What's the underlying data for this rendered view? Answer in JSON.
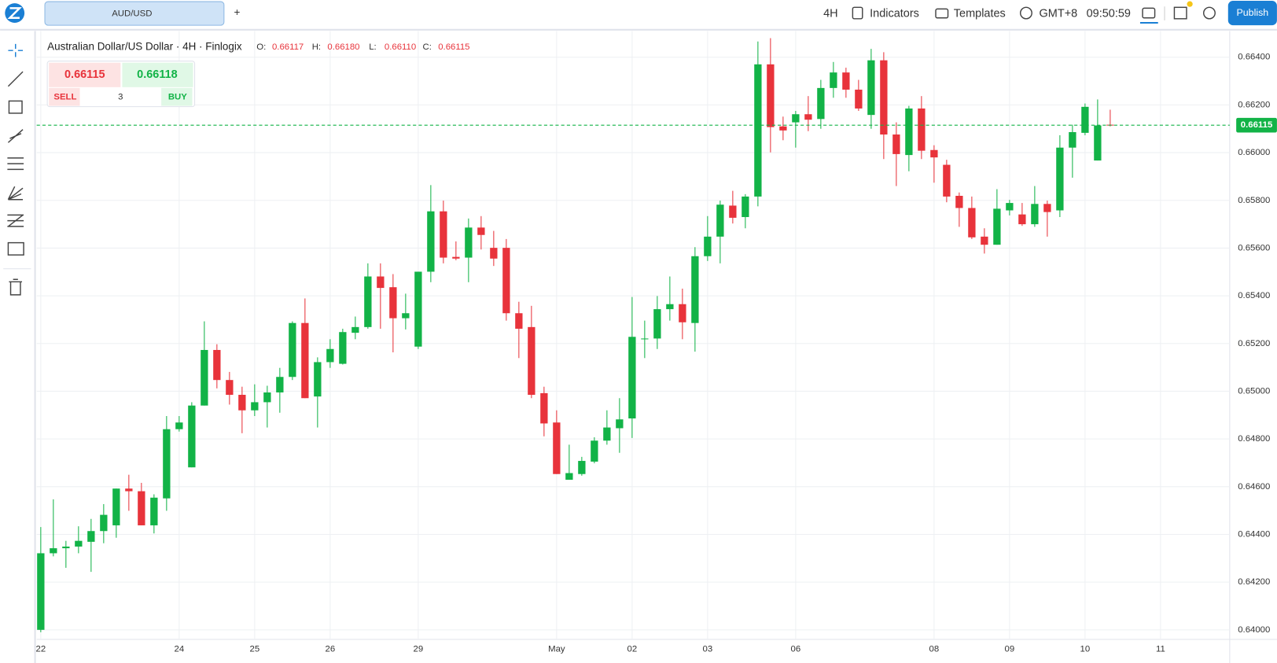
{
  "toolbar": {
    "symbol": "AUD/USD",
    "add_tab": "+",
    "interval": "4H",
    "indicators": "Indicators",
    "templates": "Templates",
    "timezone": "GMT+8",
    "clock": "09:50:59",
    "publish": "Publish"
  },
  "legend": {
    "title": "Australian Dollar/US Dollar · 4H · Finlogix",
    "o_label": "O:",
    "o": "0.66117",
    "h_label": "H:",
    "h": "0.66180",
    "l_label": "L:",
    "l": "0.66110",
    "c_label": "C:",
    "c": "0.66115"
  },
  "trade": {
    "sell_price": "0.66115",
    "buy_price": "0.66118",
    "sell": "SELL",
    "quantity": "3",
    "buy": "BUY"
  },
  "chart_data": {
    "type": "candlestick",
    "categories": [
      "22",
      null,
      null,
      null,
      null,
      null,
      null,
      null,
      null,
      null,
      null,
      "24",
      null,
      null,
      null,
      null,
      null,
      "25",
      null,
      null,
      null,
      null,
      null,
      "26",
      null,
      null,
      null,
      null,
      null,
      null,
      "29",
      null,
      null,
      null,
      null,
      null,
      null,
      null,
      null,
      null,
      null,
      "May",
      null,
      null,
      null,
      null,
      null,
      "02",
      null,
      null,
      null,
      null,
      null,
      "03",
      null,
      null,
      null,
      null,
      null,
      null,
      "06",
      null,
      null,
      null,
      null,
      null,
      null,
      null,
      null,
      null,
      null,
      "08",
      null,
      null,
      null,
      null,
      null,
      "09",
      null,
      null,
      null,
      null,
      null,
      "10",
      null,
      null,
      null,
      null,
      null,
      "11",
      null,
      null,
      null,
      null,
      null
    ],
    "open": [
      0.64,
      0.64321,
      0.64342,
      0.64349,
      0.64369,
      0.64414,
      0.64438,
      0.64592,
      0.64581,
      0.64438,
      0.64551,
      0.64841,
      0.64681,
      0.6494,
      0.65173,
      0.65047,
      0.64985,
      0.6492,
      0.64954,
      0.64995,
      0.6506,
      0.65286,
      0.64978,
      0.65122,
      0.65115,
      0.65245,
      0.65269,
      0.65481,
      0.65436,
      0.65306,
      0.65187,
      0.65501,
      0.65754,
      0.65563,
      0.6556,
      0.65686,
      0.65601,
      0.65601,
      0.65327,
      0.65269,
      0.64992,
      0.64869,
      0.64629,
      0.64653,
      0.64705,
      0.64793,
      0.64845,
      0.64886,
      0.65218,
      0.65221,
      0.65344,
      0.65365,
      0.65286,
      0.65566,
      0.65648,
      0.65778,
      0.6573,
      0.65816,
      0.6637,
      0.6611,
      0.66127,
      0.66161,
      0.66141,
      0.66271,
      0.66336,
      0.66264,
      0.66158,
      0.66387,
      0.66076,
      0.6599,
      0.66185,
      0.66011,
      0.65949,
      0.65819,
      0.65768,
      0.65648,
      0.65614,
      0.65758,
      0.65741,
      0.657,
      0.65785,
      0.65758,
      0.66021,
      0.66083,
      0.65967,
      0.66117,
      null,
      null,
      null,
      null,
      null,
      null,
      null,
      null,
      null
    ],
    "high": [
      0.64431,
      0.64547,
      0.64373,
      0.64434,
      0.64465,
      0.64527,
      0.64592,
      0.6465,
      0.64616,
      0.64568,
      0.64896,
      0.64896,
      0.64954,
      0.65293,
      0.65197,
      0.65081,
      0.65019,
      0.65029,
      0.65023,
      0.65098,
      0.65293,
      0.65389,
      0.65142,
      0.65218,
      0.65262,
      0.65313,
      0.65536,
      0.65536,
      0.65491,
      0.65409,
      0.65501,
      0.65864,
      0.65799,
      0.65628,
      0.65724,
      0.65734,
      0.65672,
      0.65638,
      0.65375,
      0.65358,
      0.65019,
      0.6492,
      0.64776,
      0.64725,
      0.64807,
      0.6492,
      0.64971,
      0.65395,
      0.65296,
      0.65399,
      0.65481,
      0.6543,
      0.65604,
      0.65734,
      0.65799,
      0.6584,
      0.65826,
      0.66466,
      0.6648,
      0.66151,
      0.66175,
      0.66237,
      0.66305,
      0.6638,
      0.66356,
      0.66305,
      0.66435,
      0.66421,
      0.66127,
      0.66196,
      0.66237,
      0.66031,
      0.6597,
      0.65833,
      0.65816,
      0.65683,
      0.65847,
      0.65802,
      0.65789,
      0.6586,
      0.65799,
      0.66073,
      0.66117,
      0.66206,
      0.66223,
      0.6618,
      null,
      null,
      null,
      null,
      null,
      null,
      null,
      null,
      null
    ],
    "low": [
      0.6399,
      0.64308,
      0.6426,
      0.64321,
      0.64243,
      0.64363,
      0.64386,
      0.64499,
      0.64438,
      0.64404,
      0.64499,
      0.64831,
      0.64681,
      0.6494,
      0.65012,
      0.64944,
      0.64824,
      0.64896,
      0.64848,
      0.6491,
      0.65047,
      0.64971,
      0.64848,
      0.65098,
      0.65112,
      0.65218,
      0.65262,
      0.65262,
      0.65163,
      0.65259,
      0.65177,
      0.65457,
      0.65536,
      0.65549,
      0.65457,
      0.65594,
      0.65525,
      0.65296,
      0.65139,
      0.64971,
      0.64811,
      0.64653,
      0.64629,
      0.64646,
      0.64698,
      0.64776,
      0.64742,
      0.64804,
      0.65139,
      0.65177,
      0.65296,
      0.65218,
      0.65166,
      0.65546,
      0.65536,
      0.65703,
      0.65683,
      0.65775,
      0.66001,
      0.66052,
      0.66021,
      0.6609,
      0.661,
      0.6623,
      0.6623,
      0.66175,
      0.661,
      0.65973,
      0.6586,
      0.65922,
      0.65973,
      0.65874,
      0.65792,
      0.65689,
      0.65638,
      0.65577,
      0.65614,
      0.65737,
      0.65693,
      0.65689,
      0.65648,
      0.6573,
      0.65895,
      0.66073,
      0.65967,
      0.6611,
      null,
      null,
      null,
      null,
      null,
      null,
      null,
      null,
      null
    ],
    "close": [
      0.64321,
      0.64342,
      0.64349,
      0.64373,
      0.64414,
      0.64482,
      0.64592,
      0.64581,
      0.64438,
      0.64554,
      0.64841,
      0.64869,
      0.6494,
      0.65173,
      0.65047,
      0.64985,
      0.6492,
      0.64954,
      0.64995,
      0.6506,
      0.65286,
      0.64971,
      0.65122,
      0.65177,
      0.65248,
      0.65269,
      0.65481,
      0.65433,
      0.65306,
      0.65327,
      0.65501,
      0.65754,
      0.6556,
      0.65556,
      0.65686,
      0.65655,
      0.65556,
      0.65327,
      0.65262,
      0.64985,
      0.64865,
      0.64653,
      0.64657,
      0.64708,
      0.64793,
      0.64848,
      0.64882,
      0.65228,
      0.65221,
      0.65344,
      0.65365,
      0.65289,
      0.65566,
      0.65648,
      0.65782,
      0.65727,
      0.65816,
      0.6637,
      0.66107,
      0.66093,
      0.66161,
      0.66138,
      0.66271,
      0.66336,
      0.66264,
      0.66185,
      0.66387,
      0.66076,
      0.65994,
      0.66185,
      0.66008,
      0.6598,
      0.65816,
      0.65768,
      0.65645,
      0.65614,
      0.65765,
      0.65789,
      0.657,
      0.65785,
      0.65751,
      0.66021,
      0.66086,
      0.66192,
      0.66114,
      0.66115,
      null,
      null,
      null,
      null,
      null,
      null,
      null,
      null,
      null
    ],
    "up_color": "#12b347",
    "down_color": "#e8333b",
    "ylim": [
      0.6396,
      0.6651
    ],
    "yticks": [
      {
        "value": 0.64,
        "label": "0.64000"
      },
      {
        "value": 0.642,
        "label": "0.64200"
      },
      {
        "value": 0.644,
        "label": "0.64400"
      },
      {
        "value": 0.646,
        "label": "0.64600"
      },
      {
        "value": 0.648,
        "label": "0.64800"
      },
      {
        "value": 0.65,
        "label": "0.65000"
      },
      {
        "value": 0.652,
        "label": "0.65200"
      },
      {
        "value": 0.654,
        "label": "0.65400"
      },
      {
        "value": 0.656,
        "label": "0.65600"
      },
      {
        "value": 0.658,
        "label": "0.65800"
      },
      {
        "value": 0.66,
        "label": "0.66000"
      },
      {
        "value": 0.662,
        "label": "0.66200"
      },
      {
        "value": 0.664,
        "label": "0.66400"
      }
    ],
    "grid": true,
    "last_price": 0.66115,
    "last_price_color": "#12b347"
  }
}
